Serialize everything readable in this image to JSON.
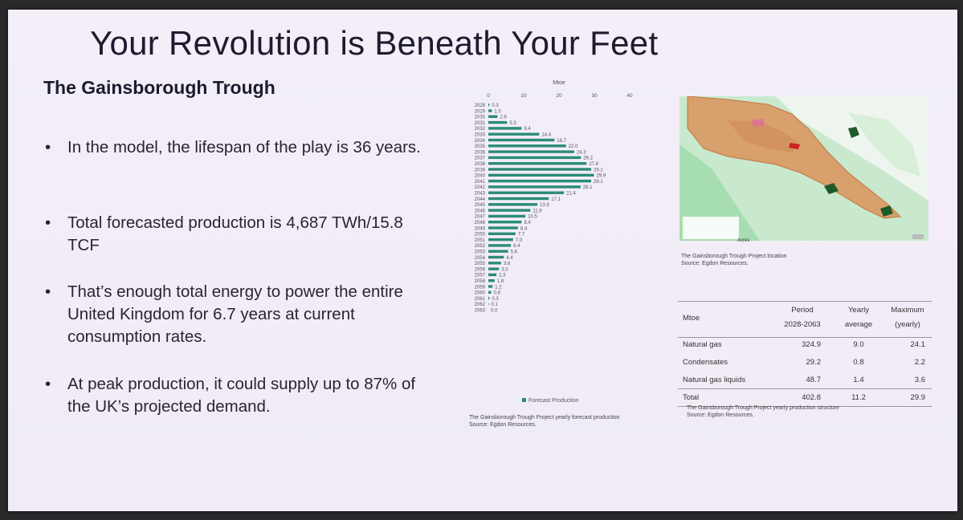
{
  "slide": {
    "title": "Your Revolution is Beneath Your Feet",
    "subtitle": "The Gainsborough Trough",
    "bullets": [
      "In the model, the lifespan of the play is 36 years.",
      "Total forecasted production is 4,687 TWh/15.8 TCF",
      "That’s enough total energy to power the entire United Kingdom for 6.7 years at current consumption rates.",
      "At peak production, it could supply up to 87% of the UK’s projected demand."
    ],
    "bullet_glyph": "•"
  },
  "chart_data": {
    "type": "bar",
    "orientation": "horizontal",
    "xlabel": "Mtoe",
    "xlim": [
      0,
      40
    ],
    "xticks": [
      "0",
      "10",
      "20",
      "30",
      "40"
    ],
    "categories": [
      "2028",
      "2029",
      "2030",
      "2031",
      "2032",
      "2033",
      "2034",
      "2035",
      "2036",
      "2037",
      "2038",
      "2039",
      "2040",
      "2041",
      "2042",
      "2043",
      "2044",
      "2045",
      "2046",
      "2047",
      "2048",
      "2049",
      "2050",
      "2051",
      "2052",
      "2053",
      "2054",
      "2055",
      "2056",
      "2057",
      "2058",
      "2059",
      "2060",
      "2061",
      "2062",
      "2063"
    ],
    "series": [
      {
        "name": "Forecast Production",
        "values": [
          0.3,
          1.0,
          2.6,
          5.3,
          9.4,
          14.4,
          18.7,
          22.0,
          24.3,
          26.2,
          27.8,
          29.1,
          29.9,
          29.1,
          26.1,
          21.4,
          17.1,
          13.9,
          11.9,
          10.5,
          9.4,
          8.4,
          7.7,
          7.0,
          6.4,
          5.6,
          4.4,
          3.6,
          3.0,
          2.3,
          1.8,
          1.2,
          0.8,
          0.3,
          0.1,
          0.0
        ],
        "labels": [
          "0.3",
          "1.0",
          "2.6",
          "5.3",
          "9.4",
          "14.4",
          "18.7",
          "22.0",
          "24.3",
          "26.2",
          "27.8",
          "29.1",
          "29.9",
          "29.1",
          "26.1",
          "21.4",
          "17.1",
          "13.9",
          "11.9",
          "10.5",
          "9.4",
          "8.4",
          "7.7",
          "7.0",
          "6.4",
          "5.6",
          "4.4",
          "3.6",
          "3.0",
          "2.3",
          "1.8",
          "1.2",
          "0.8",
          "0.3",
          "0.1",
          "0.0"
        ],
        "color": "#2a8c73"
      }
    ],
    "legend": "bottom",
    "caption": [
      "The Gainsborough Trough Project yearly forecast production",
      "Source: Egdon Resources."
    ]
  },
  "map": {
    "acres_label": "Acres",
    "caption": [
      "The Gainsborough Trough Project location",
      "Source: Egdon Resources."
    ]
  },
  "table": {
    "header": {
      "c0": "Mtoe",
      "c1a": "Period",
      "c1b": "2028-2063",
      "c2a": "Yearly",
      "c2b": "average",
      "c3a": "Maximum",
      "c3b": "(yearly)"
    },
    "rows": [
      {
        "name": "Natural gas",
        "period": "324.9",
        "avg": "9.0",
        "max": "24.1"
      },
      {
        "name": "Condensates",
        "period": "29.2",
        "avg": "0.8",
        "max": "2.2"
      },
      {
        "name": "Natural gas liquids",
        "period": "48.7",
        "avg": "1.4",
        "max": "3.6"
      },
      {
        "name": "Total",
        "period": "402.8",
        "avg": "11.2",
        "max": "29.9"
      }
    ],
    "caption": [
      "The Gainsborough Trough Project yearly production structure",
      "Source: Egdon Resources."
    ]
  }
}
